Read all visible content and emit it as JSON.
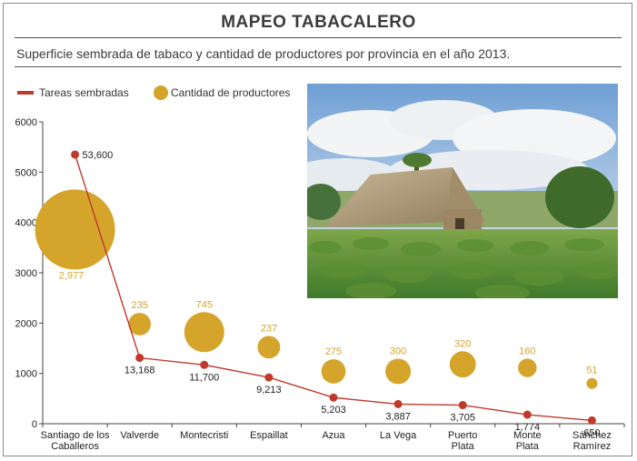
{
  "header": {
    "title": "MAPEO TABACALERO",
    "subtitle": "Superficie sembrada de tabaco y cantidad de productores por provincia en el año 2013."
  },
  "colors": {
    "line": "#c0392b",
    "bubble": "#d4a42b",
    "axis": "#444444"
  },
  "photo": {
    "icon": "tobacco-barn-photo"
  },
  "chart_data": {
    "type": "scatter",
    "title": "",
    "xlabel": "",
    "ylabel": "",
    "ylim": [
      0,
      6000
    ],
    "yticks": [
      0,
      1000,
      2000,
      3000,
      4000,
      5000,
      6000
    ],
    "grid": false,
    "legend_position": "top-left",
    "categories": [
      [
        "Santiago de los",
        "Caballeros"
      ],
      [
        "Valverde"
      ],
      [
        "Montecristi"
      ],
      [
        "Espaillat"
      ],
      [
        "Azua"
      ],
      [
        "La Vega"
      ],
      [
        "Puerto",
        "Plata"
      ],
      [
        "Monte",
        "Plata"
      ],
      [
        "Sánchez",
        "Ramírez"
      ]
    ],
    "series": [
      {
        "name": "Tareas sembradas",
        "kind": "line",
        "y_plot": [
          5350,
          1310,
          1170,
          920,
          520,
          390,
          370,
          180,
          65
        ],
        "labels": [
          "53,600",
          "13,168",
          "11,700",
          "9,213",
          "5,203",
          "3,887",
          "3,705",
          "1,774",
          "650"
        ]
      },
      {
        "name": "Cantidad de productores",
        "kind": "bubble",
        "y_plot": [
          3860,
          1980,
          1820,
          1520,
          1040,
          1040,
          1180,
          1110,
          800
        ],
        "values": [
          2977,
          235,
          745,
          237,
          275,
          300,
          320,
          160,
          51
        ],
        "labels": [
          "2,977",
          "235",
          "745",
          "237",
          "275",
          "300",
          "320",
          "160",
          "51"
        ]
      }
    ]
  }
}
